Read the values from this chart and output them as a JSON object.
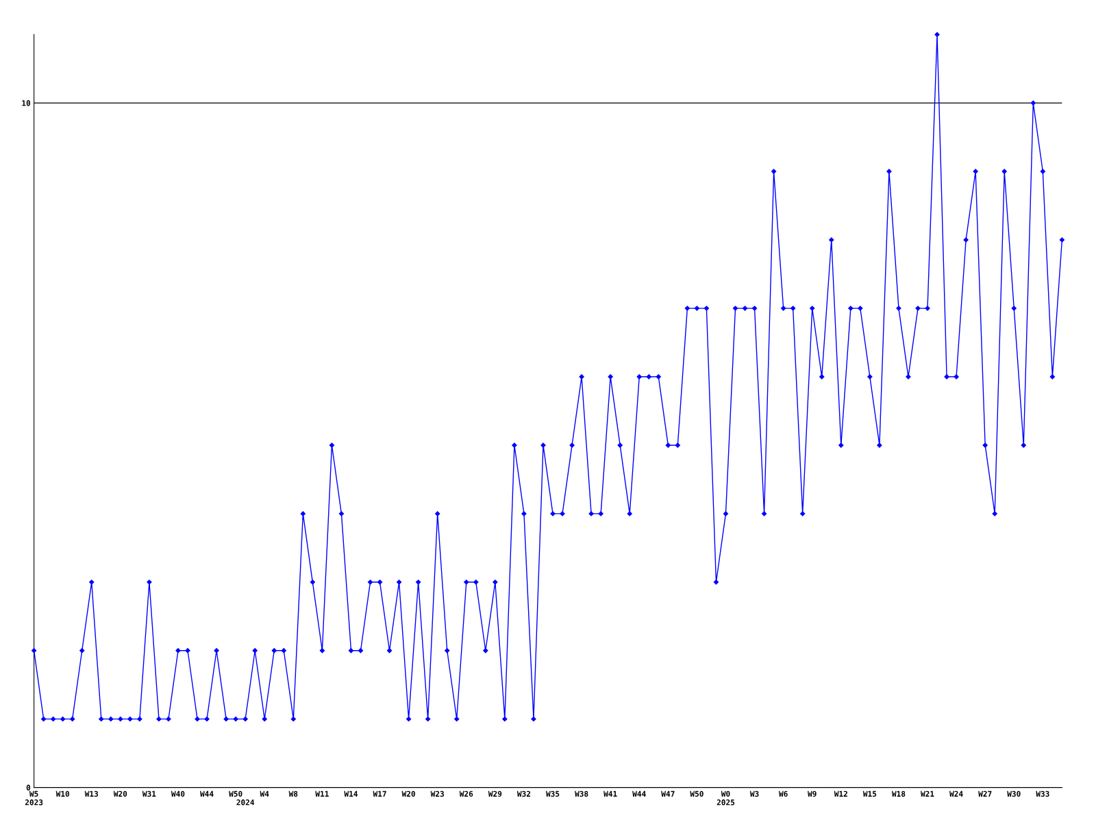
{
  "chart_data": {
    "type": "line",
    "color": "#0000ff",
    "marker": "diamond",
    "grid": "y",
    "ylim": [
      0,
      11
    ],
    "yticks": [
      0,
      10
    ],
    "categories": [
      "W5\n2023",
      null,
      null,
      "W10",
      null,
      null,
      "W13",
      null,
      null,
      "W20",
      null,
      null,
      "W31",
      null,
      null,
      "W40",
      null,
      null,
      "W44",
      null,
      null,
      "W50",
      "\n2024",
      null,
      "W4",
      null,
      null,
      "W8",
      null,
      null,
      "W11",
      null,
      null,
      "W14",
      null,
      null,
      "W17",
      null,
      null,
      "W20",
      null,
      null,
      "W23",
      null,
      null,
      "W26",
      null,
      null,
      "W29",
      null,
      null,
      "W32",
      null,
      null,
      "W35",
      null,
      null,
      "W38",
      null,
      null,
      "W41",
      null,
      null,
      "W44",
      null,
      null,
      "W47",
      null,
      null,
      "W50",
      null,
      null,
      "W0\n2025",
      null,
      null,
      "W3",
      null,
      null,
      "W6",
      null,
      null,
      "W9",
      null,
      null,
      "W12",
      null,
      null,
      "W15",
      null,
      null,
      "W18",
      null,
      null,
      "W21",
      null,
      null,
      "W24",
      null,
      null,
      "W27",
      null,
      null,
      "W30",
      null,
      null,
      "W33",
      null,
      null
    ],
    "values": [
      2,
      1,
      1,
      1,
      1,
      2,
      3,
      1,
      1,
      1,
      1,
      1,
      3,
      1,
      1,
      2,
      2,
      1,
      1,
      2,
      1,
      1,
      1,
      2,
      1,
      2,
      2,
      1,
      4,
      3,
      2,
      5,
      4,
      2,
      2,
      3,
      3,
      2,
      3,
      1,
      3,
      1,
      4,
      2,
      1,
      3,
      3,
      2,
      3,
      1,
      5,
      4,
      1,
      5,
      4,
      4,
      5,
      6,
      4,
      4,
      6,
      5,
      4,
      6,
      6,
      6,
      5,
      5,
      7,
      7,
      7,
      3,
      4,
      7,
      7,
      7,
      4,
      9,
      7,
      7,
      4,
      7,
      6,
      8,
      5,
      7,
      7,
      6,
      5,
      9,
      7,
      6,
      7,
      7,
      11,
      6,
      6,
      8,
      9,
      5,
      4,
      9,
      7,
      5,
      10,
      9,
      6,
      8
    ]
  }
}
